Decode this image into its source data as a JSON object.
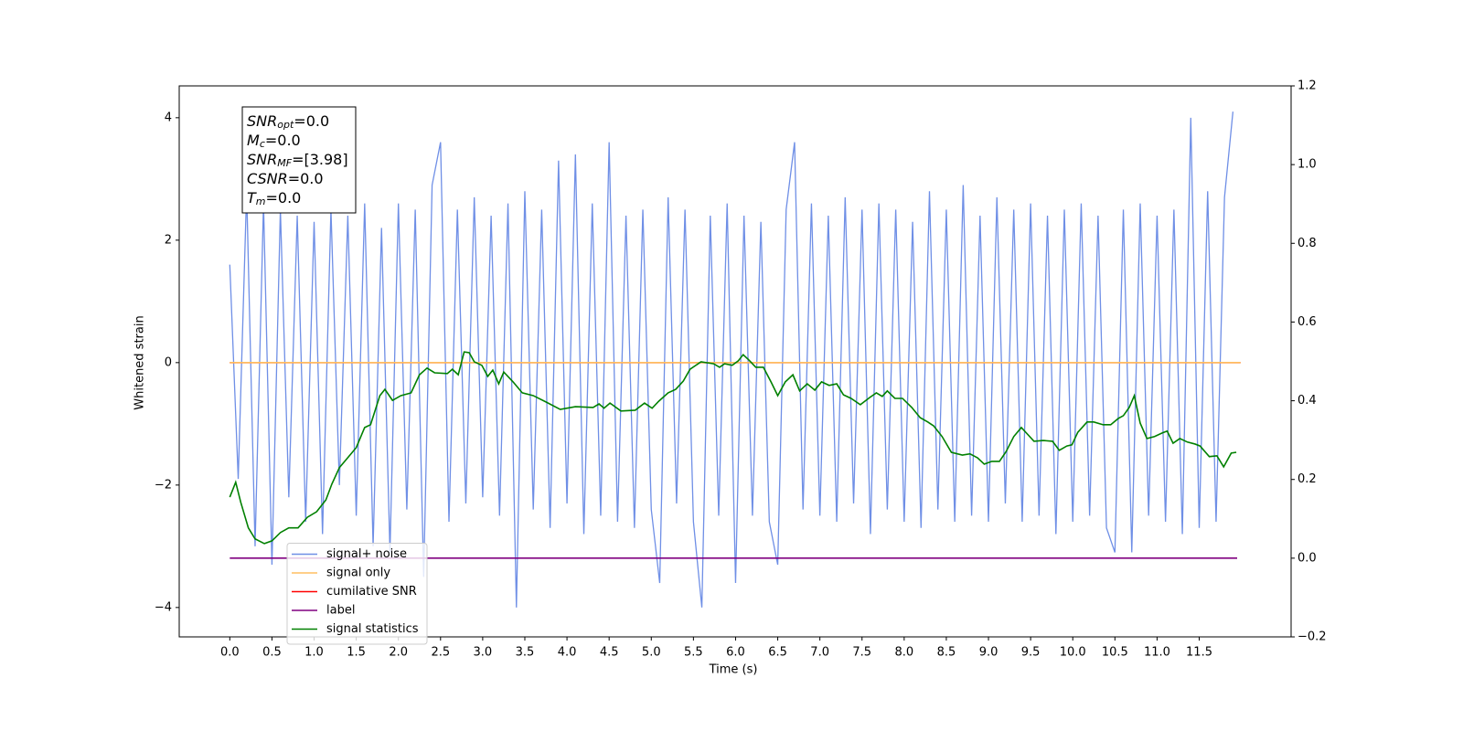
{
  "chart_data": {
    "type": "line",
    "xlabel": "Time (s)",
    "ylabel": "Whitened strain",
    "xlim": [
      -0.6,
      12.59
    ],
    "ylim": [
      -4.48,
      4.52
    ],
    "y2lim": [
      -0.2,
      1.2
    ],
    "xticks": [
      {
        "value": 0,
        "label": "0.0"
      },
      {
        "value": 0.5,
        "label": "0.5"
      },
      {
        "value": 1,
        "label": "1.0"
      },
      {
        "value": 1.5,
        "label": "1.5"
      },
      {
        "value": 2,
        "label": "2.0"
      },
      {
        "value": 2.5,
        "label": "2.5"
      },
      {
        "value": 3,
        "label": "3.0"
      },
      {
        "value": 3.5,
        "label": "3.5"
      },
      {
        "value": 4,
        "label": "4.0"
      },
      {
        "value": 4.5,
        "label": "4.5"
      },
      {
        "value": 5,
        "label": "5.0"
      },
      {
        "value": 5.5,
        "label": "5.5"
      },
      {
        "value": 6,
        "label": "6.0"
      },
      {
        "value": 6.5,
        "label": "6.5"
      },
      {
        "value": 7,
        "label": "7.0"
      },
      {
        "value": 7.5,
        "label": "7.5"
      },
      {
        "value": 8,
        "label": "8.0"
      },
      {
        "value": 8.5,
        "label": "8.5"
      },
      {
        "value": 9,
        "label": "9.0"
      },
      {
        "value": 9.5,
        "label": "9.5"
      },
      {
        "value": 10,
        "label": "10.0"
      },
      {
        "value": 10.5,
        "label": "10.5"
      },
      {
        "value": 11,
        "label": "11.0"
      },
      {
        "value": 11.5,
        "label": "11.5"
      }
    ],
    "yticks": [
      {
        "value": -4,
        "label": "−4"
      },
      {
        "value": -2,
        "label": "−2"
      },
      0,
      2,
      4
    ],
    "y2ticks": [
      {
        "value": -0.2,
        "label": "−0.2"
      },
      {
        "value": 0,
        "label": "0.0"
      },
      {
        "value": 0.2,
        "label": "0.2"
      },
      {
        "value": 0.4,
        "label": "0.4"
      },
      {
        "value": 0.6,
        "label": "0.6"
      },
      {
        "value": 0.8,
        "label": "0.8"
      },
      {
        "value": 1,
        "label": "1.0"
      },
      {
        "value": 1.2,
        "label": "1.2"
      }
    ],
    "annotation": [
      {
        "base": "SNR",
        "sub": "opt",
        "rest": "=0.0"
      },
      {
        "base": "M",
        "sub": "c",
        "rest": "=0.0"
      },
      {
        "base": "SNR",
        "sub": "MF",
        "rest": "=[3.98]"
      },
      {
        "base": "CSNR",
        "rest": "=0.0"
      },
      {
        "base": "T",
        "sub": "m",
        "rest": "=0.0"
      }
    ],
    "legend": "lower left",
    "series": [
      {
        "name": "signal+ noise",
        "color": "#6f8fe6",
        "x": [
          0,
          0.1,
          0.2,
          0.3,
          0.4,
          0.5,
          0.6,
          0.7,
          0.8,
          0.9,
          1,
          1.1,
          1.2,
          1.3,
          1.4,
          1.5,
          1.6,
          1.7,
          1.8,
          1.9,
          2,
          2.1,
          2.2,
          2.3,
          2.4,
          2.5,
          2.6,
          2.7,
          2.8,
          2.9,
          3,
          3.1,
          3.2,
          3.3,
          3.4,
          3.5,
          3.6,
          3.7,
          3.8,
          3.9,
          4,
          4.1,
          4.2,
          4.3,
          4.4,
          4.5,
          4.6,
          4.7,
          4.8,
          4.9,
          5,
          5.1,
          5.2,
          5.3,
          5.4,
          5.5,
          5.6,
          5.7,
          5.8,
          5.9,
          6,
          6.1,
          6.2,
          6.3,
          6.4,
          6.5,
          6.6,
          6.7,
          6.8,
          6.9,
          7,
          7.1,
          7.2,
          7.3,
          7.4,
          7.5,
          7.6,
          7.7,
          7.8,
          7.9,
          8,
          8.1,
          8.2,
          8.3,
          8.4,
          8.5,
          8.6,
          8.7,
          8.8,
          8.9,
          9,
          9.1,
          9.2,
          9.3,
          9.4,
          9.5,
          9.6,
          9.7,
          9.8,
          9.9,
          10,
          10.1,
          10.2,
          10.3,
          10.4,
          10.5,
          10.6,
          10.7,
          10.8,
          10.9,
          11,
          11.1,
          11.2,
          11.3,
          11.4,
          11.5,
          11.6,
          11.7,
          11.8,
          11.9
        ],
        "values": [
          1.6,
          -1.9,
          2.8,
          -3.0,
          2.6,
          -3.3,
          2.5,
          -2.2,
          2.4,
          -2.6,
          2.3,
          -2.8,
          2.5,
          -2.0,
          2.4,
          -2.5,
          2.6,
          -3.0,
          2.2,
          -3.1,
          2.6,
          -2.4,
          2.5,
          -3.5,
          2.9,
          3.6,
          -2.6,
          2.5,
          -2.3,
          2.7,
          -2.2,
          2.4,
          -2.5,
          2.6,
          -4.0,
          2.8,
          -2.4,
          2.5,
          -2.7,
          3.3,
          -2.3,
          3.4,
          -2.8,
          2.6,
          -2.5,
          3.6,
          -2.6,
          2.4,
          -2.7,
          2.5,
          -2.4,
          -3.6,
          2.7,
          -2.3,
          2.5,
          -2.6,
          -4.0,
          2.4,
          -2.5,
          2.6,
          -3.6,
          2.4,
          -2.5,
          2.3,
          -2.6,
          -3.3,
          2.5,
          3.6,
          -2.4,
          2.6,
          -2.5,
          2.4,
          -2.6,
          2.7,
          -2.3,
          2.5,
          -2.8,
          2.6,
          -2.4,
          2.5,
          -2.6,
          2.3,
          -2.7,
          2.8,
          -2.4,
          2.5,
          -2.6,
          2.9,
          -2.5,
          2.4,
          -2.6,
          2.7,
          -2.3,
          2.5,
          -2.6,
          2.6,
          -2.5,
          2.4,
          -2.8,
          2.5,
          -2.6,
          2.6,
          -2.5,
          2.4,
          -2.7,
          -3.1,
          2.5,
          -3.1,
          2.6,
          -2.5,
          2.4,
          -2.6,
          2.5,
          -2.8,
          4.0,
          -2.7,
          2.8,
          -2.6,
          2.7,
          4.1
        ]
      },
      {
        "name": "signal only",
        "color": "#ffbf60",
        "x": [
          0,
          11.99
        ],
        "values": [
          0,
          0
        ]
      },
      {
        "name": "cumilative SNR",
        "color": "#ff0000",
        "x": [
          0,
          11.99
        ],
        "values": [
          0,
          0
        ]
      },
      {
        "name": "label",
        "color": "#800080",
        "axis": "y2",
        "x": [
          0,
          11.95
        ],
        "values": [
          0,
          0
        ]
      },
      {
        "name": "signal statistics",
        "color": "#008000",
        "axis": "y2",
        "x": [
          0,
          0.07,
          0.13,
          0.22,
          0.3,
          0.41,
          0.5,
          0.6,
          0.7,
          0.81,
          0.92,
          1.03,
          1.14,
          1.21,
          1.3,
          1.41,
          1.5,
          1.6,
          1.67,
          1.78,
          1.84,
          1.93,
          2.03,
          2.15,
          2.25,
          2.34,
          2.43,
          2.58,
          2.64,
          2.71,
          2.78,
          2.84,
          2.9,
          2.99,
          3.06,
          3.12,
          3.19,
          3.25,
          3.36,
          3.47,
          3.6,
          3.75,
          3.92,
          4.1,
          4.31,
          4.38,
          4.44,
          4.51,
          4.64,
          4.81,
          4.92,
          5.01,
          5.09,
          5.2,
          5.29,
          5.38,
          5.46,
          5.59,
          5.74,
          5.81,
          5.87,
          5.96,
          6.03,
          6.09,
          6.16,
          6.24,
          6.33,
          6.42,
          6.5,
          6.59,
          6.68,
          6.76,
          6.85,
          6.94,
          7.02,
          7.11,
          7.2,
          7.28,
          7.37,
          7.48,
          7.59,
          7.67,
          7.74,
          7.8,
          7.89,
          7.98,
          8.09,
          8.19,
          8.28,
          8.35,
          8.45,
          8.56,
          8.69,
          8.78,
          8.87,
          8.95,
          9.04,
          9.13,
          9.21,
          9.3,
          9.39,
          9.45,
          9.54,
          9.65,
          9.76,
          9.84,
          9.93,
          9.99,
          10.06,
          10.17,
          10.25,
          10.36,
          10.45,
          10.54,
          10.6,
          10.67,
          10.73,
          10.8,
          10.88,
          10.97,
          11.06,
          11.12,
          11.19,
          11.27,
          11.36,
          11.45,
          11.51,
          11.62,
          11.71,
          11.79,
          11.88,
          11.94
        ],
        "values": [
          0.155,
          0.193,
          0.142,
          0.077,
          0.049,
          0.037,
          0.044,
          0.065,
          0.077,
          0.077,
          0.104,
          0.118,
          0.148,
          0.188,
          0.23,
          0.258,
          0.281,
          0.332,
          0.339,
          0.413,
          0.429,
          0.401,
          0.413,
          0.42,
          0.466,
          0.483,
          0.471,
          0.469,
          0.48,
          0.466,
          0.524,
          0.522,
          0.499,
          0.49,
          0.462,
          0.478,
          0.443,
          0.473,
          0.448,
          0.42,
          0.413,
          0.397,
          0.378,
          0.385,
          0.383,
          0.392,
          0.381,
          0.394,
          0.374,
          0.376,
          0.394,
          0.381,
          0.399,
          0.42,
          0.429,
          0.45,
          0.48,
          0.499,
          0.494,
          0.485,
          0.494,
          0.49,
          0.501,
          0.517,
          0.503,
          0.485,
          0.485,
          0.448,
          0.413,
          0.448,
          0.466,
          0.425,
          0.443,
          0.427,
          0.448,
          0.439,
          0.443,
          0.415,
          0.406,
          0.39,
          0.408,
          0.42,
          0.411,
          0.425,
          0.406,
          0.406,
          0.383,
          0.357,
          0.346,
          0.336,
          0.309,
          0.269,
          0.262,
          0.265,
          0.255,
          0.239,
          0.246,
          0.246,
          0.271,
          0.309,
          0.332,
          0.318,
          0.297,
          0.299,
          0.297,
          0.274,
          0.285,
          0.288,
          0.32,
          0.346,
          0.346,
          0.339,
          0.339,
          0.355,
          0.362,
          0.383,
          0.413,
          0.343,
          0.304,
          0.309,
          0.318,
          0.323,
          0.292,
          0.304,
          0.295,
          0.29,
          0.285,
          0.258,
          0.26,
          0.232,
          0.267,
          0.269
        ]
      }
    ]
  }
}
